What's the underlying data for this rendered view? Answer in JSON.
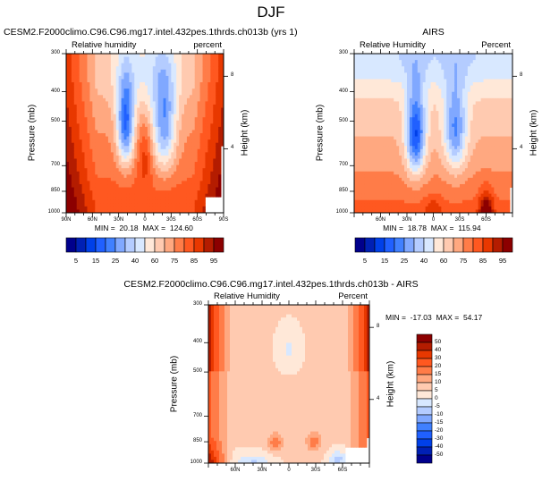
{
  "title": "DJF",
  "colors": {
    "rh_levels": [
      "#00008c",
      "#0020b4",
      "#0040e8",
      "#2060ff",
      "#4080ff",
      "#80a8ff",
      "#b4ccff",
      "#d8e8ff",
      "#ffe8d8",
      "#ffcab0",
      "#ffa880",
      "#ff7c48",
      "#ff5820",
      "#e83800",
      "#b41c00",
      "#8c0000"
    ],
    "diff_levels": [
      "#00008c",
      "#0020b4",
      "#0040e8",
      "#2060ff",
      "#4080ff",
      "#80a8ff",
      "#b4ccff",
      "#d8e8ff",
      "#ffe8d8",
      "#ffcab0",
      "#ffa880",
      "#ff7c48",
      "#ff5820",
      "#e83800",
      "#b41c00",
      "#8c0000"
    ]
  },
  "chart_data": [
    {
      "type": "heatmap",
      "title": "CESM2.F2000climo.C96.C96.mg17.intel.432pes.1thrds.ch013b (yrs 1)",
      "left_label": "Relative humidity",
      "right_label": "percent",
      "xlabel": "",
      "ylabel": "Pressure (mb)",
      "y2label": "Height (km)",
      "x_ticks": [
        "90N",
        "60N",
        "30N",
        "0",
        "30S",
        "60S",
        "90S"
      ],
      "x_range": [
        90,
        -90
      ],
      "y_ticks": [
        300,
        400,
        500,
        700,
        850,
        1000
      ],
      "y_range": [
        300,
        1000
      ],
      "y2_ticks": [
        8,
        4
      ],
      "min": "20.18",
      "max": "124.60",
      "min_label": "MIN =",
      "max_label": "MAX =",
      "colorbar": {
        "orientation": "horizontal",
        "labels": [
          "5",
          "15",
          "25",
          "40",
          "60",
          "75",
          "85",
          "95"
        ]
      }
    },
    {
      "type": "heatmap",
      "title": "AIRS",
      "left_label": "Relative Humidity",
      "right_label": "Percent",
      "ylabel": "Pressure (mb)",
      "y2label": "Height (km)",
      "x_ticks": [
        "60N",
        "30N",
        "0",
        "30S",
        "60S"
      ],
      "x_range": [
        90,
        -90
      ],
      "y_ticks": [
        300,
        400,
        500,
        700,
        850,
        1000
      ],
      "y_range": [
        300,
        1000
      ],
      "y2_ticks": [
        8,
        4
      ],
      "min": "18.78",
      "max": "115.94",
      "min_label": "MIN =",
      "max_label": "MAX =",
      "colorbar": {
        "orientation": "horizontal",
        "labels": [
          "5",
          "15",
          "25",
          "40",
          "60",
          "75",
          "85",
          "95"
        ]
      }
    },
    {
      "type": "heatmap",
      "title": "CESM2.F2000climo.C96.C96.mg17.intel.432pes.1thrds.ch013b - AIRS",
      "left_label": "Relative Humidity",
      "right_label": "Percent",
      "ylabel": "Pressure (mb)",
      "y2label": "Height (km)",
      "x_ticks": [
        "60N",
        "30N",
        "0",
        "30S",
        "60S"
      ],
      "x_range": [
        90,
        -90
      ],
      "y_ticks": [
        300,
        400,
        500,
        700,
        850,
        1000
      ],
      "y_range": [
        300,
        1000
      ],
      "y2_ticks": [
        8,
        4
      ],
      "min": "-17.03",
      "max": "54.17",
      "min_label": "MIN =",
      "max_label": "MAX =",
      "colorbar": {
        "orientation": "vertical",
        "labels": [
          "50",
          "40",
          "30",
          "20",
          "15",
          "10",
          "5",
          "0",
          "-5",
          "-10",
          "-15",
          "-20",
          "-30",
          "-40",
          "-50"
        ]
      }
    }
  ]
}
